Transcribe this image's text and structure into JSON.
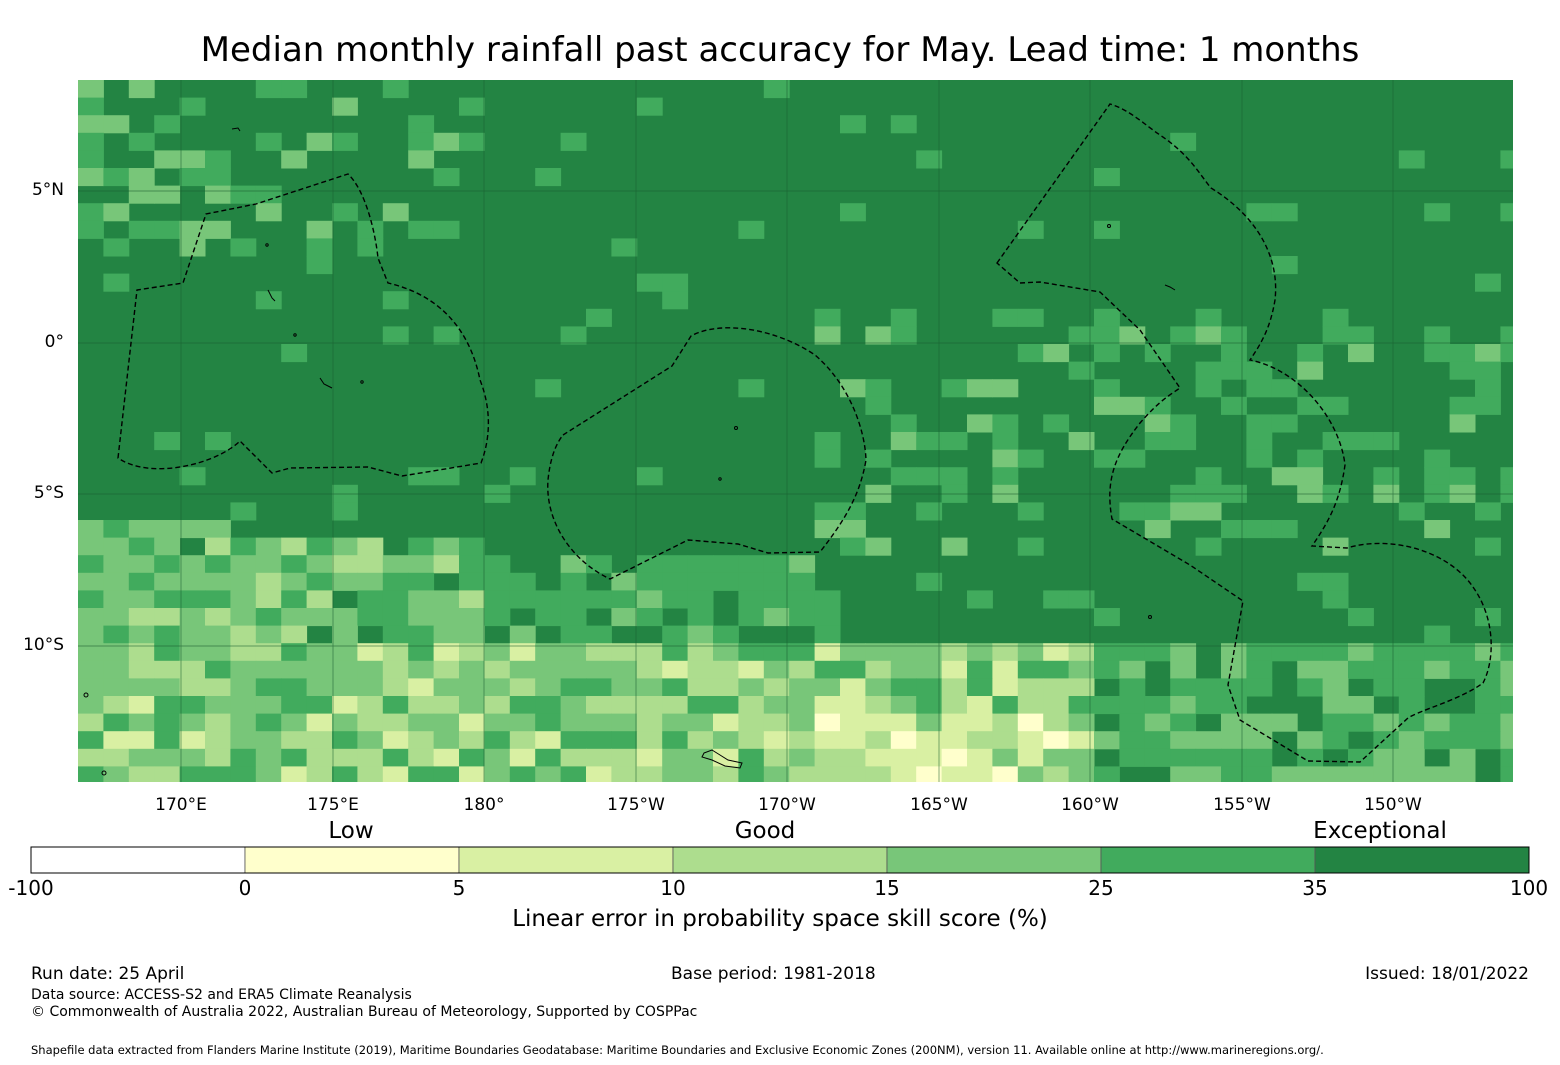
{
  "title": "Median monthly rainfall past accuracy for May. Lead time: 1 months",
  "map": {
    "lat_labels": [
      "5°N",
      "0°",
      "5°S",
      "10°S"
    ],
    "lon_labels": [
      "170°E",
      "175°E",
      "180°",
      "175°W",
      "170°W",
      "165°W",
      "160°W",
      "155°W",
      "150°W"
    ],
    "lon_range": [
      166.6,
      214.0
    ],
    "lat_range": [
      -14.5,
      8.7
    ],
    "colors": {
      "c0": "#ffffff",
      "c1": "#ffffcc",
      "c2": "#d9f0a3",
      "c3": "#addd8e",
      "c4": "#78c679",
      "c5": "#41ab5d",
      "c6": "#238443"
    }
  },
  "legend": {
    "category_labels": [
      "Low",
      "Good",
      "Exceptional"
    ],
    "ticks": [
      "-100",
      "0",
      "5",
      "10",
      "15",
      "25",
      "35",
      "100"
    ],
    "title": "Linear error in probability space skill score (%)"
  },
  "footer": {
    "run_date": "Run date: 25 April",
    "base_period": "Base period: 1981-2018",
    "issued": "Issued: 18/01/2022",
    "data_source": "Data source: ACCESS-S2 and ERA5 Climate Reanalysis",
    "copyright": "© Commonwealth of Australia 2022, Australian Bureau of Meteorology, Supported by COSPPac",
    "shapefile": "Shapefile data extracted from Flanders Marine Institute (2019), Maritime Boundaries Geodatabase: Maritime Boundaries and Exclusive Economic Zones (200NM), version 11. Available online at http://www.marineregions.org/."
  }
}
